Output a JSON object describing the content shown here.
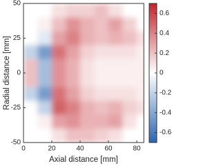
{
  "chart_data": {
    "type": "heatmap",
    "xlabel": "Axial distance [mm]",
    "ylabel": "Radial distance [mm]",
    "x": [
      5,
      15,
      25,
      35,
      45,
      55,
      65,
      75,
      85
    ],
    "y": [
      45,
      35,
      25,
      15,
      5,
      -5,
      -15,
      -25,
      -35,
      -45
    ],
    "z": [
      [
        null,
        null,
        0.1,
        0.15,
        0.15,
        0.2,
        0.1,
        null,
        null
      ],
      [
        null,
        0.05,
        0.2,
        0.35,
        0.25,
        0.2,
        0.3,
        0.15,
        null
      ],
      [
        null,
        -0.1,
        0.3,
        0.4,
        0.25,
        0.2,
        0.25,
        0.2,
        0.1
      ],
      [
        -0.2,
        -0.45,
        0.45,
        0.3,
        0.15,
        0.1,
        0.1,
        0.1,
        0.05
      ],
      [
        0.2,
        -0.3,
        0.35,
        0.25,
        0.1,
        0.05,
        0.05,
        0.05,
        0.05
      ],
      [
        0.2,
        -0.3,
        0.35,
        0.25,
        0.1,
        0.05,
        0.05,
        0.05,
        0.05
      ],
      [
        -0.2,
        -0.45,
        0.45,
        0.3,
        0.15,
        0.1,
        0.1,
        0.1,
        0.05
      ],
      [
        null,
        -0.2,
        0.5,
        0.4,
        0.25,
        0.2,
        0.25,
        0.15,
        0.1
      ],
      [
        null,
        0.05,
        0.3,
        0.35,
        0.25,
        0.25,
        0.3,
        0.1,
        null
      ],
      [
        null,
        null,
        0.1,
        0.2,
        0.2,
        0.15,
        0.1,
        null,
        null
      ]
    ],
    "xlim": [
      0,
      85
    ],
    "ylim": [
      -50,
      50
    ],
    "xticks": [
      0,
      20,
      40,
      60,
      80
    ],
    "yticks": [
      -50,
      -25,
      0,
      25,
      50
    ],
    "clim": [
      -0.7,
      0.7
    ],
    "cticks": [
      -0.6,
      -0.4,
      -0.2,
      0,
      0.2,
      0.4,
      0.6
    ],
    "colormap": [
      "#2b65b0",
      "#ffffff",
      "#c0242c"
    ]
  }
}
